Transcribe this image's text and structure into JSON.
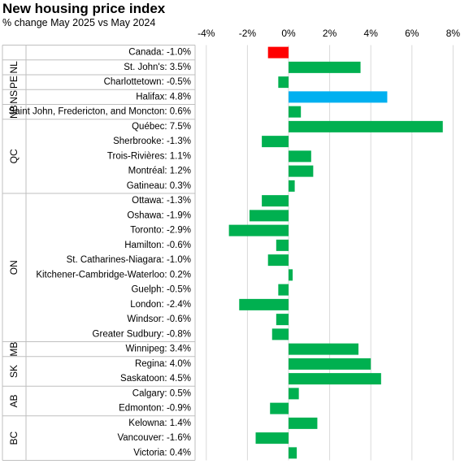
{
  "chart_data": {
    "type": "bar",
    "orientation": "horizontal",
    "title": "New housing price index",
    "subtitle": "% change May 2025 vs May 2024",
    "xlabel": "",
    "ylabel": "",
    "xlim": [
      -4,
      8
    ],
    "xticks": [
      -4,
      -2,
      0,
      2,
      4,
      6,
      8
    ],
    "xtick_labels": [
      "-4%",
      "-2%",
      "0%",
      "2%",
      "4%",
      "6%",
      "8%"
    ],
    "grid": "vertical",
    "legend": "none",
    "colors": {
      "default": "#00b050",
      "highlight_negative": "#ff0000",
      "highlight_max": "#00b0f0",
      "grid": "#d9d9d9",
      "separator": "#bfbfbf"
    },
    "groups": [
      {
        "name": "",
        "start": 0,
        "end": 0
      },
      {
        "name": "NL",
        "start": 1,
        "end": 1
      },
      {
        "name": "PE",
        "start": 2,
        "end": 2
      },
      {
        "name": "NS",
        "start": 3,
        "end": 3
      },
      {
        "name": "NB",
        "start": 4,
        "end": 4
      },
      {
        "name": "QC",
        "start": 5,
        "end": 9
      },
      {
        "name": "ON",
        "start": 10,
        "end": 19
      },
      {
        "name": "MB",
        "start": 20,
        "end": 20
      },
      {
        "name": "SK",
        "start": 21,
        "end": 22
      },
      {
        "name": "AB",
        "start": 23,
        "end": 24
      },
      {
        "name": "BC",
        "start": 25,
        "end": 27
      }
    ],
    "categories": [
      "Canada: -1.0%",
      "St. John's: 3.5%",
      "Charlottetown: -0.5%",
      "Halifax: 4.8%",
      "Saint John, Fredericton, and Moncton: 0.6%",
      "Québec: 7.5%",
      "Sherbrooke: -1.3%",
      "Trois-Rivières: 1.1%",
      "Montréal: 1.2%",
      "Gatineau: 0.3%",
      "Ottawa: -1.3%",
      "Oshawa: -1.9%",
      "Toronto: -2.9%",
      "Hamilton: -0.6%",
      "St. Catharines-Niagara: -1.0%",
      "Kitchener-Cambridge-Waterloo: 0.2%",
      "Guelph: -0.5%",
      "London: -2.4%",
      "Windsor: -0.6%",
      "Greater Sudbury: -0.8%",
      "Winnipeg: 3.4%",
      "Regina: 4.0%",
      "Saskatoon: 4.5%",
      "Calgary: 0.5%",
      "Edmonton: -0.9%",
      "Kelowna: 1.4%",
      "Vancouver: -1.6%",
      "Victoria: 0.4%"
    ],
    "values": [
      -1.0,
      3.5,
      -0.5,
      4.8,
      0.6,
      7.5,
      -1.3,
      1.1,
      1.2,
      0.3,
      -1.3,
      -1.9,
      -2.9,
      -0.6,
      -1.0,
      0.2,
      -0.5,
      -2.4,
      -0.6,
      -0.8,
      3.4,
      4.0,
      4.5,
      0.5,
      -0.9,
      1.4,
      -1.6,
      0.4
    ],
    "bar_colors": [
      "highlight_negative",
      "default",
      "default",
      "highlight_max",
      "default",
      "default",
      "default",
      "default",
      "default",
      "default",
      "default",
      "default",
      "default",
      "default",
      "default",
      "default",
      "default",
      "default",
      "default",
      "default",
      "default",
      "default",
      "default",
      "default",
      "default",
      "default",
      "default",
      "default"
    ]
  }
}
